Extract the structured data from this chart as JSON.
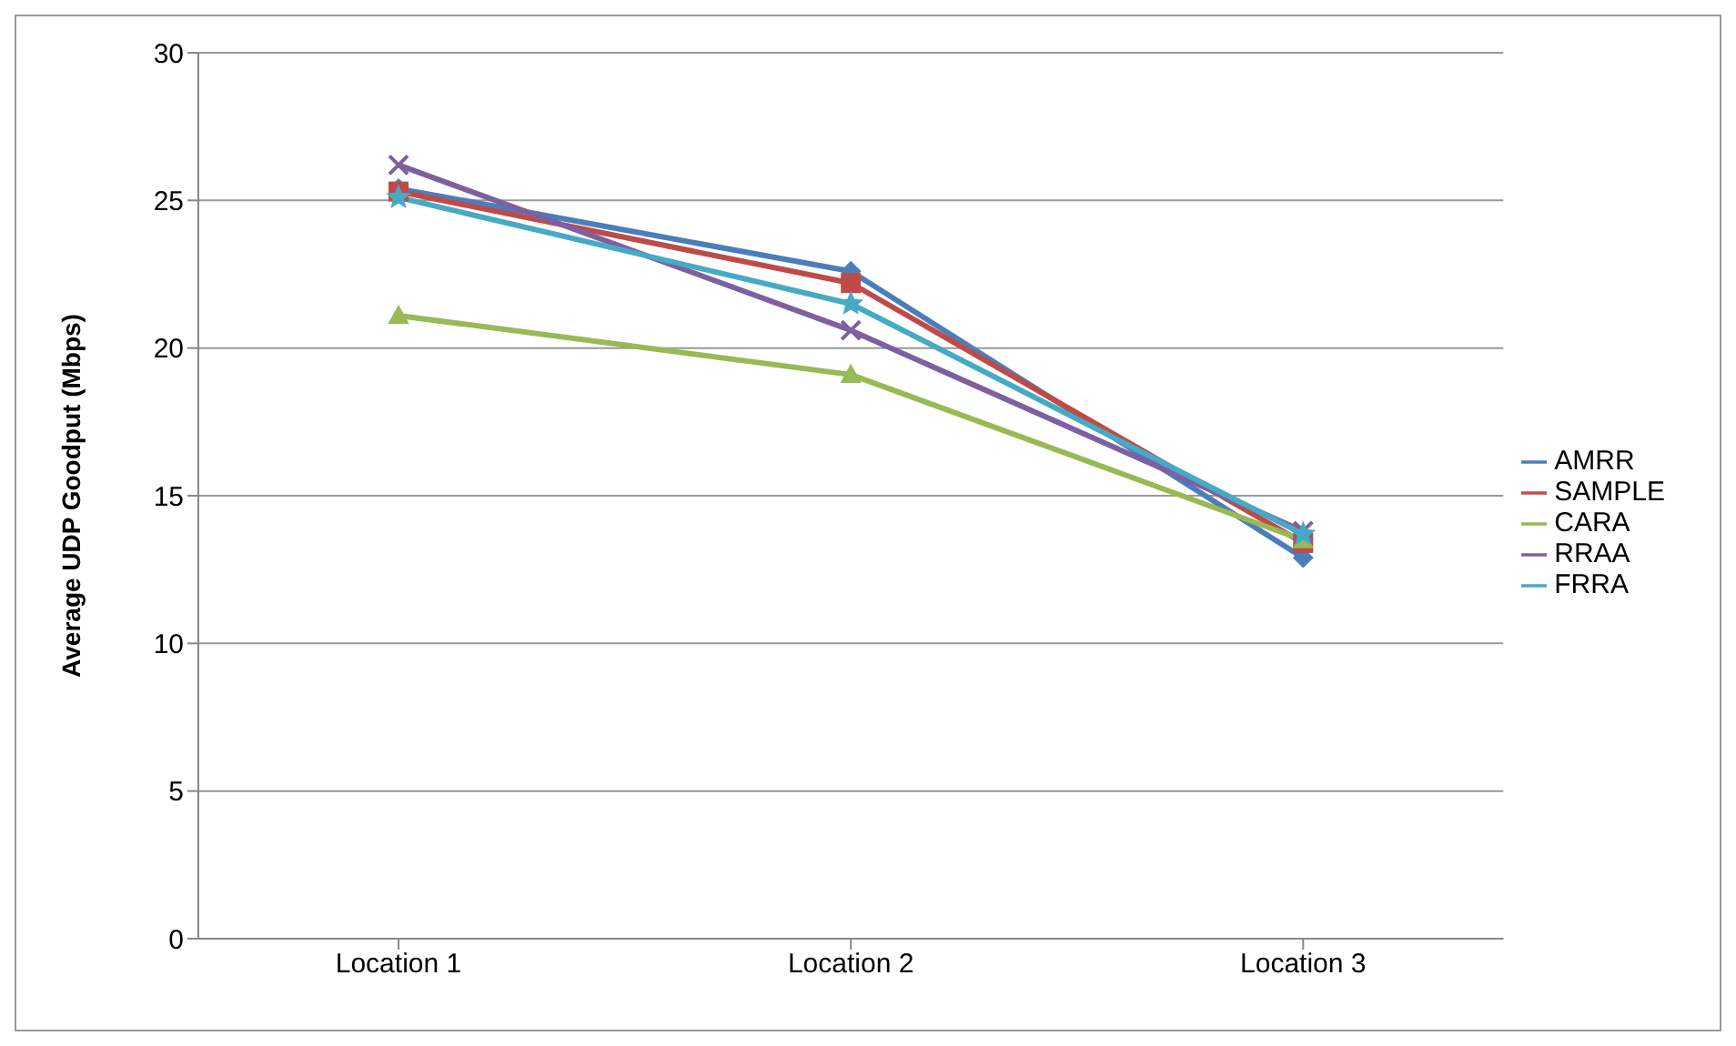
{
  "chart_data": {
    "type": "line",
    "ylabel": "Average UDP Goodput (Mbps)",
    "categories": [
      "Location 1",
      "Location 2",
      "Location 3"
    ],
    "series": [
      {
        "name": "AMRR",
        "color": "#4a7ebb",
        "values": [
          25.4,
          22.6,
          12.9
        ],
        "marker": "diamond"
      },
      {
        "name": "SAMPLE",
        "color": "#be4b48",
        "values": [
          25.3,
          22.2,
          13.4
        ],
        "marker": "square"
      },
      {
        "name": "CARA",
        "color": "#98b954",
        "values": [
          21.1,
          19.1,
          13.5
        ],
        "marker": "triangle"
      },
      {
        "name": "RRAA",
        "color": "#7d60a0",
        "values": [
          26.2,
          20.6,
          13.8
        ],
        "marker": "cross"
      },
      {
        "name": "FRRA",
        "color": "#46aac5",
        "values": [
          25.1,
          21.5,
          13.7
        ],
        "marker": "star"
      }
    ],
    "ylim": [
      0,
      30
    ],
    "yticks": [
      0,
      5,
      10,
      15,
      20,
      25,
      30
    ],
    "grid": "y",
    "legend": "right"
  }
}
